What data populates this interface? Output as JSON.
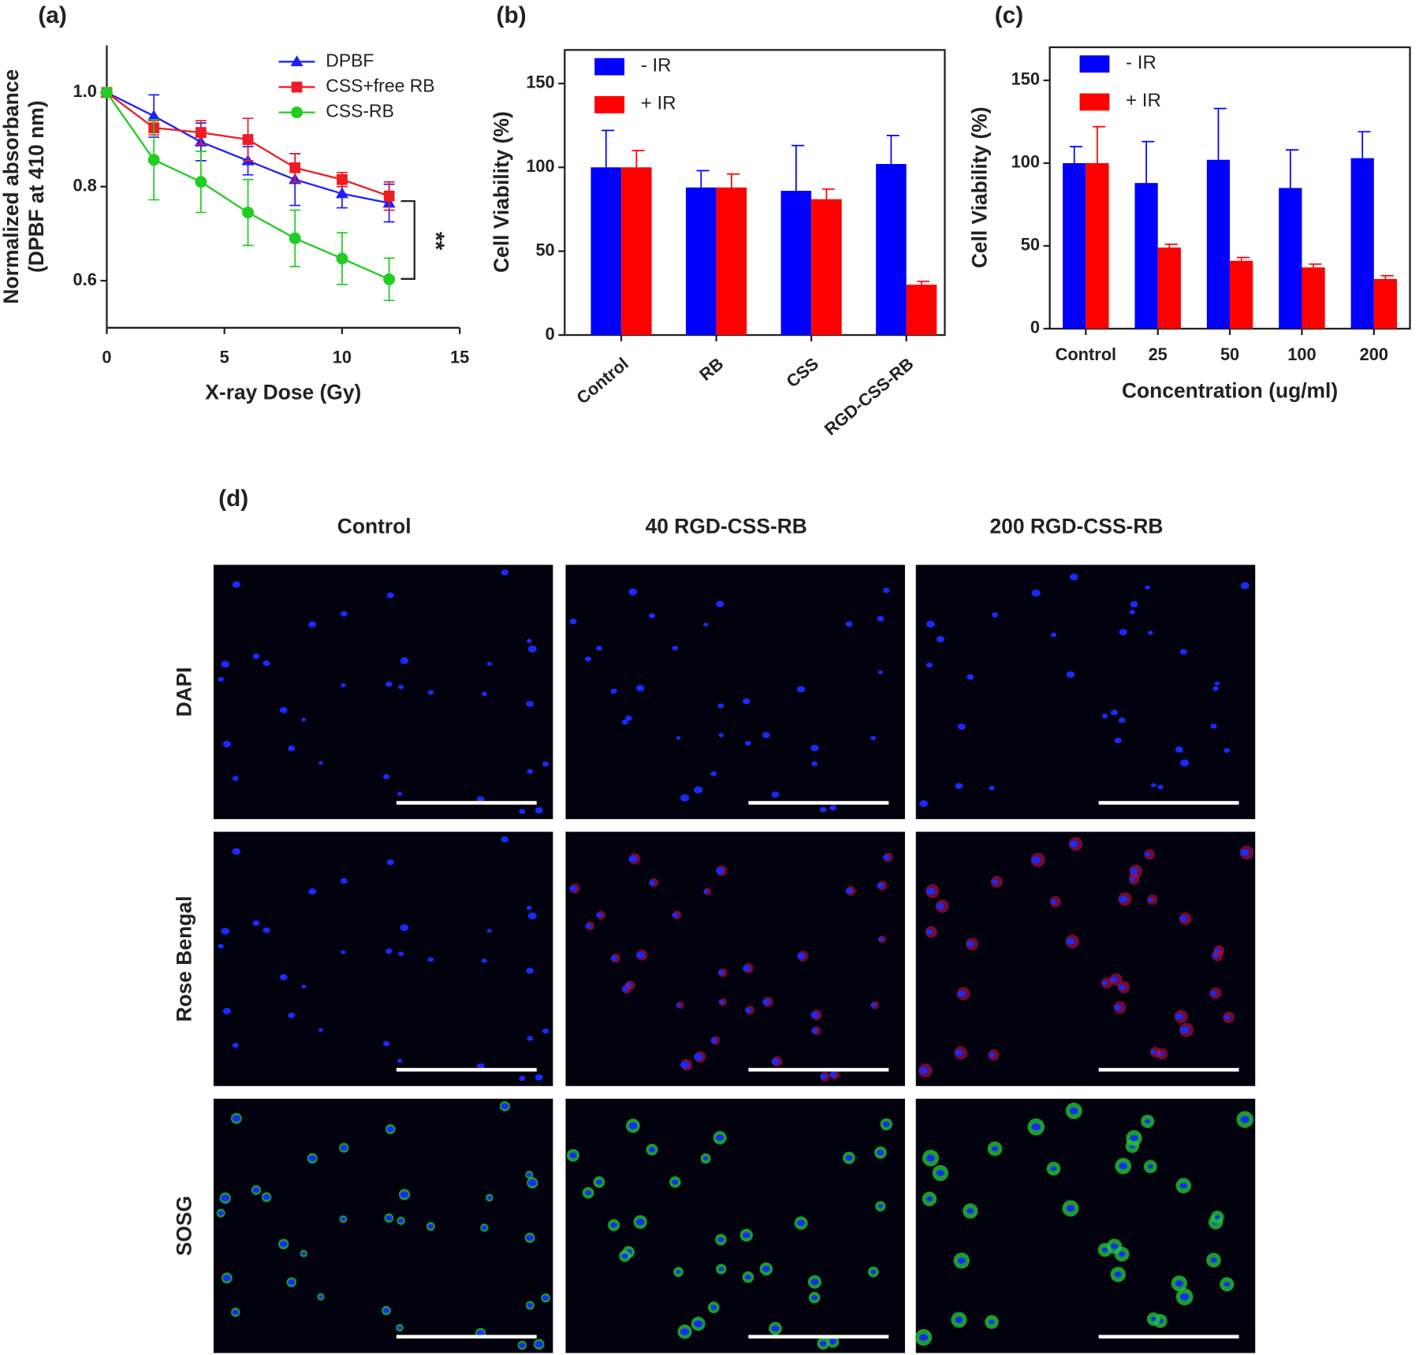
{
  "chart_data": [
    {
      "type": "line",
      "panel": "(a)",
      "xlabel": "X-ray Dose (Gy)",
      "ylabel": [
        "Normalized absorbance",
        "(DPBF at 410 nm)"
      ],
      "x": [
        0,
        2,
        4,
        6,
        8,
        10,
        12
      ],
      "series": [
        {
          "name": "DPBF",
          "color": "#1f1fff",
          "marker": "triangle",
          "values": [
            1.0,
            0.95,
            0.895,
            0.855,
            0.815,
            0.785,
            0.765
          ],
          "errors": [
            0,
            0.045,
            0.04,
            0.03,
            0.055,
            0.03,
            0.04
          ]
        },
        {
          "name": "CSS+free RB",
          "color": "#ee1c24",
          "marker": "square",
          "values": [
            1.0,
            0.925,
            0.915,
            0.9,
            0.84,
            0.815,
            0.78
          ],
          "errors": [
            0,
            0.015,
            0.025,
            0.045,
            0.03,
            0.015,
            0.03
          ]
        },
        {
          "name": "CSS-RB",
          "color": "#22cc22",
          "marker": "circle",
          "values": [
            1.0,
            0.857,
            0.81,
            0.745,
            0.69,
            0.647,
            0.603
          ],
          "errors": [
            0,
            0.085,
            0.065,
            0.07,
            0.06,
            0.055,
            0.045
          ]
        }
      ],
      "xlim": [
        0,
        15
      ],
      "xticks": [
        0,
        5,
        10,
        15
      ],
      "ylim": [
        0.5,
        1.1
      ],
      "yticks": [
        {
          "value": 0.6,
          "label": "0.6"
        },
        {
          "value": 0.8,
          "label": "0.8"
        },
        {
          "value": 1.0,
          "label": "1.0"
        }
      ],
      "annotation": "**",
      "legend": "upper right"
    },
    {
      "type": "bar",
      "panel": "(b)",
      "ylabel": "Cell Viability (%)",
      "categories": [
        "Control",
        "RB",
        "CSS",
        "RGD-CSS-RB"
      ],
      "series": [
        {
          "name": "- IR",
          "color": "#0000ff",
          "values": [
            100,
            88,
            86,
            102
          ],
          "errors": [
            22,
            10,
            27,
            17
          ]
        },
        {
          "name": "+ IR",
          "color": "#ff0000",
          "values": [
            100,
            88,
            81,
            30
          ],
          "errors": [
            10,
            8,
            6,
            2
          ]
        }
      ],
      "ylim": [
        0,
        170
      ],
      "yticks": [
        0,
        50,
        100,
        150
      ],
      "legend": "upper left",
      "rotate_labels": true
    },
    {
      "type": "bar",
      "panel": "(c)",
      "ylabel": "Cell Viability (%)",
      "xlabel": "Concentration (ug/ml)",
      "categories": [
        "Control",
        "25",
        "50",
        "100",
        "200"
      ],
      "series": [
        {
          "name": "- IR",
          "color": "#0000ff",
          "values": [
            100,
            88,
            102,
            85,
            103
          ],
          "errors": [
            10,
            25,
            31,
            23,
            16
          ]
        },
        {
          "name": "+ IR",
          "color": "#ff0000",
          "values": [
            100,
            49,
            41,
            37,
            30
          ],
          "errors": [
            22,
            2,
            2,
            2,
            2
          ]
        }
      ],
      "ylim": [
        0,
        170
      ],
      "yticks": [
        0,
        50,
        100,
        150
      ],
      "legend": "upper left",
      "rotate_labels": false
    }
  ],
  "panel_d": {
    "label": "(d)",
    "columns": [
      "Control",
      "40 RGD-CSS-RB",
      "200 RGD-CSS-RB"
    ],
    "rows": [
      "DAPI",
      "Rose Bengal",
      "SOSG"
    ]
  }
}
